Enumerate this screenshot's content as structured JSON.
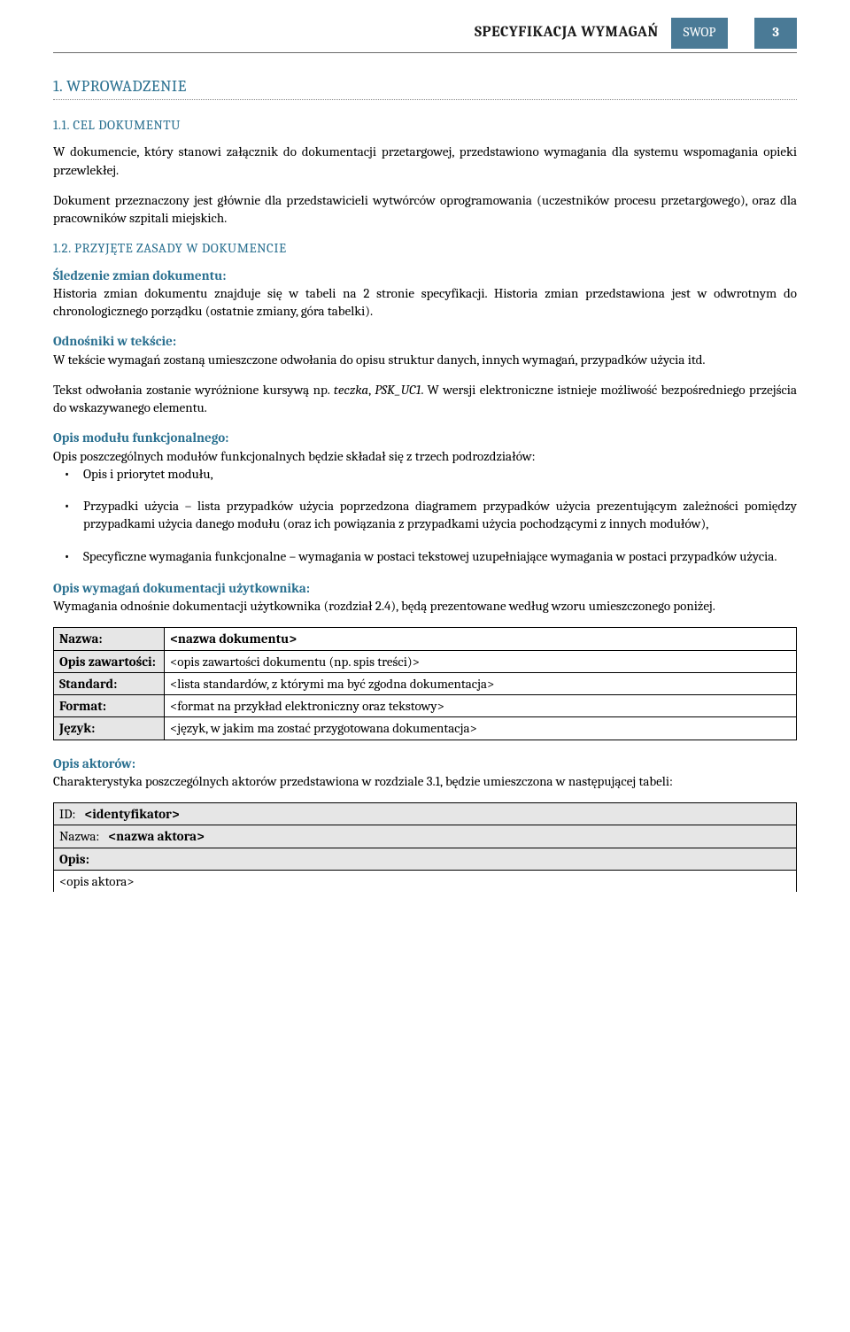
{
  "header": {
    "title": "SPECYFIKACJA WYMAGAŃ",
    "swop": "SWOP",
    "page": "3"
  },
  "section1": {
    "num_title": "1.   WPROWADZENIE",
    "s11_title": "1.1.   CEL DOKUMENTU",
    "s11_p1": "W dokumencie, który stanowi załącznik do dokumentacji przetargowej, przedstawiono wymagania dla systemu wspomagania opieki przewlekłej.",
    "s11_p2": "Dokument przeznaczony jest głównie dla przedstawicieli wytwórców oprogramowania (uczestników procesu przetargowego), oraz dla pracowników szpitali miejskich.",
    "s12_title": "1.2.   PRZYJĘTE ZASADY W DOKUMENCIE",
    "track_label": "Śledzenie zmian dokumentu:",
    "track_text": "Historia zmian dokumentu znajduje się w tabeli na 2 stronie specyfikacji. Historia zmian przedstawiona jest w odwrotnym do chronologicznego porządku (ostatnie zmiany, góra tabelki).",
    "ref_label": "Odnośniki w tekście:",
    "ref_text": "W tekście wymagań zostaną umieszczone odwołania do opisu struktur danych, innych wymagań, przypadków użycia itd.",
    "ref_p2_a": "Tekst odwołania zostanie wyróżnione kursywą np. ",
    "ref_p2_it1": "teczka",
    "ref_p2_b": ", ",
    "ref_p2_it2": "PSK_UC1",
    "ref_p2_c": ". W wersji elektroniczne istnieje możliwość bezpośredniego przejścia do wskazywanego elementu.",
    "mod_label": "Opis modułu funkcjonalnego:",
    "mod_text": "Opis poszczególnych modułów funkcjonalnych będzie składał się z trzech podrozdziałów:",
    "bullets": [
      "Opis i priorytet modułu,",
      "Przypadki użycia – lista przypadków użycia poprzedzona diagramem przypadków użycia prezentującym zależności pomiędzy przypadkami użycia danego modułu (oraz ich powiązania z przypadkami użycia pochodzącymi z innych modułów),",
      "Specyficzne wymagania funkcjonalne – wymagania w postaci tekstowej uzupełniające wymagania w postaci przypadków użycia."
    ],
    "docreq_label": "Opis wymagań dokumentacji użytkownika:",
    "docreq_text": "Wymagania odnośnie dokumentacji użytkownika (rozdział 2.4), będą prezentowane według wzoru umieszczonego poniżej.",
    "table": {
      "r1l": "Nazwa:",
      "r1v": "<nazwa dokumentu>",
      "r2l": "Opis zawartości:",
      "r2v": "<opis zawartości dokumentu (np. spis treści)>",
      "r3l": "Standard:",
      "r3v": "<lista standardów, z którymi ma być zgodna dokumentacja>",
      "r4l": "Format:",
      "r4v": "<format na przykład elektroniczny oraz tekstowy>",
      "r5l": "Język:",
      "r5v": "<język, w jakim ma zostać przygotowana dokumentacja>"
    },
    "actor_label": "Opis aktorów:",
    "actor_text": "Charakterystyka poszczególnych aktorów przedstawiona w rozdziale 3.1, będzie umieszczona w następującej tabeli:",
    "actor_table": {
      "id_l": "ID:",
      "id_v": "<identyfikator>",
      "name_l": "Nazwa:",
      "name_v": "<nazwa aktora>",
      "desc_l": "Opis:",
      "desc_v": "<opis aktora>"
    }
  }
}
